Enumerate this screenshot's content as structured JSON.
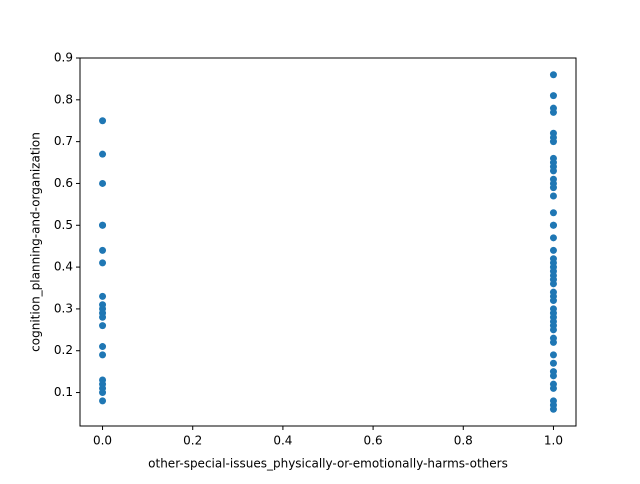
{
  "chart_data": {
    "type": "scatter",
    "xlabel": "other-special-issues_physically-or-emotionally-harms-others",
    "ylabel": "cognition_planning-and-organization",
    "color": "#1f77b4",
    "x": [
      0,
      0,
      0,
      0,
      0,
      0,
      0,
      0,
      0,
      0,
      0,
      0,
      0,
      0,
      0,
      0,
      0,
      0,
      0,
      0,
      1,
      1,
      1,
      1,
      1,
      1,
      1,
      1,
      1,
      1,
      1,
      1,
      1,
      1,
      1,
      1,
      1,
      1,
      1,
      1,
      1,
      1,
      1,
      1,
      1,
      1,
      1,
      1,
      1,
      1,
      1,
      1,
      1,
      1,
      1,
      1,
      1,
      1,
      1,
      1,
      1,
      1,
      1,
      1,
      1,
      1,
      1
    ],
    "values": [
      0.75,
      0.67,
      0.6,
      0.5,
      0.5,
      0.44,
      0.41,
      0.33,
      0.31,
      0.3,
      0.29,
      0.28,
      0.26,
      0.21,
      0.19,
      0.13,
      0.12,
      0.11,
      0.1,
      0.08,
      0.86,
      0.81,
      0.78,
      0.77,
      0.72,
      0.71,
      0.7,
      0.66,
      0.65,
      0.64,
      0.63,
      0.61,
      0.6,
      0.59,
      0.57,
      0.53,
      0.5,
      0.5,
      0.47,
      0.44,
      0.42,
      0.41,
      0.4,
      0.39,
      0.38,
      0.37,
      0.36,
      0.34,
      0.33,
      0.32,
      0.3,
      0.29,
      0.28,
      0.27,
      0.26,
      0.25,
      0.23,
      0.22,
      0.19,
      0.17,
      0.15,
      0.14,
      0.12,
      0.11,
      0.08,
      0.07,
      0.06
    ],
    "xlim": [
      -0.05,
      1.05
    ],
    "xticks": [
      {
        "value": 0,
        "label": "0.0"
      },
      0.2,
      0.4,
      0.6,
      0.8,
      {
        "value": 1,
        "label": "1.0"
      }
    ],
    "ylim": [
      0.02,
      0.9
    ],
    "yticks": [
      0.1,
      0.2,
      0.3,
      0.4,
      0.5,
      0.6,
      0.7,
      0.8,
      0.9
    ]
  }
}
